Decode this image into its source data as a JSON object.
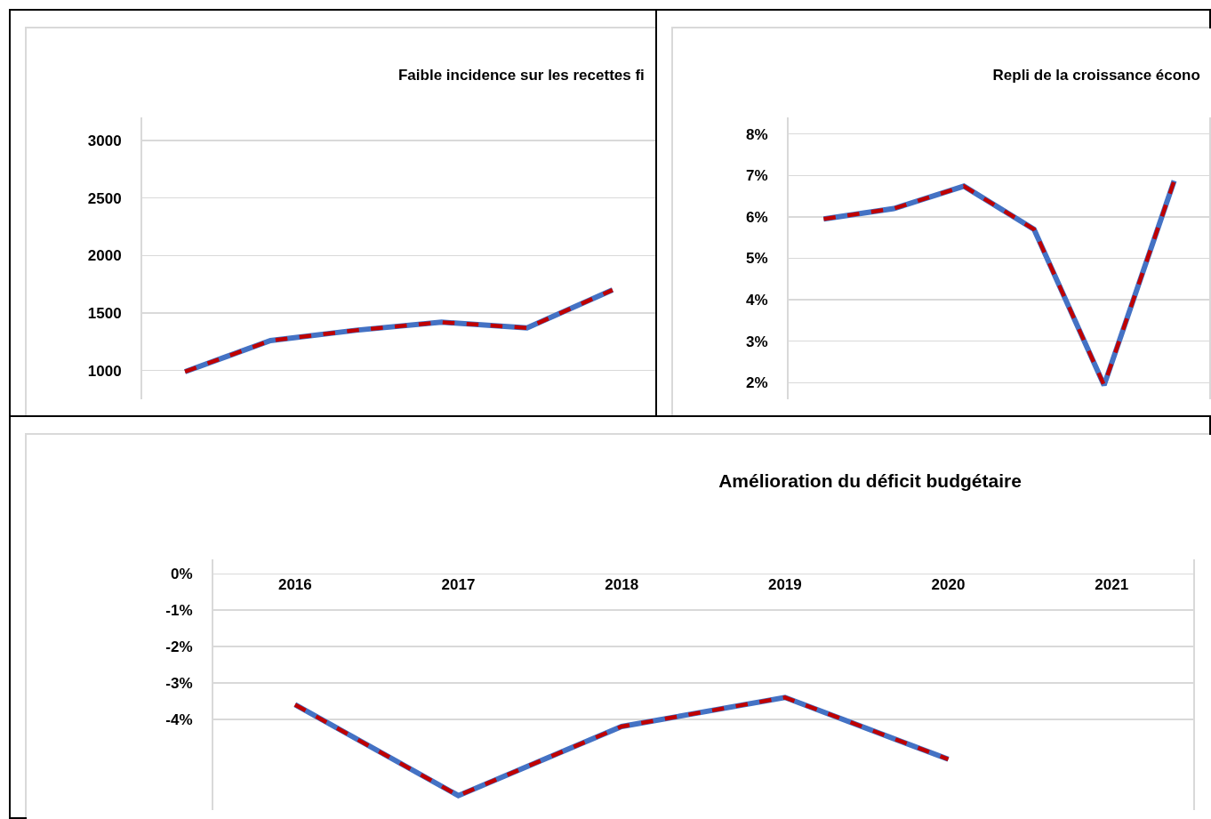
{
  "chart_data": [
    {
      "type": "line",
      "title": "Faible incidence sur les recettes fi",
      "categories": [
        null,
        null,
        null,
        null,
        null,
        null
      ],
      "series": [
        {
          "color": "#4472c4",
          "line_style": "solid",
          "values": [
            990,
            1260,
            1350,
            1420,
            1370,
            1700
          ]
        },
        {
          "color": "#c00000",
          "line_style": "dashed",
          "values": [
            990,
            1260,
            1350,
            1420,
            1370,
            1700
          ]
        }
      ],
      "ylim": [
        750,
        3200
      ],
      "yticks": [
        1000,
        1500,
        2000,
        2500,
        3000
      ],
      "grid": "y",
      "tick_labels": "y"
    },
    {
      "type": "line",
      "title": "Repli de la croissance écono",
      "categories": [
        null,
        null,
        null,
        null,
        null,
        null
      ],
      "series": [
        {
          "color": "#4472c4",
          "line_style": "solid",
          "values": [
            5.95,
            6.2,
            6.74,
            5.7,
            1.94,
            6.87
          ]
        },
        {
          "color": "#c00000",
          "line_style": "dashed",
          "values": [
            5.95,
            6.2,
            6.74,
            5.7,
            1.94,
            6.87
          ]
        }
      ],
      "ylim": [
        1.6,
        8.4
      ],
      "yticks": [
        {
          "value": 2,
          "label": "2%"
        },
        {
          "value": 3,
          "label": "3%"
        },
        {
          "value": 4,
          "label": "4%"
        },
        {
          "value": 5,
          "label": "5%"
        },
        {
          "value": 6,
          "label": "6%"
        },
        {
          "value": 7,
          "label": "7%"
        },
        {
          "value": 8,
          "label": "8%"
        }
      ],
      "grid": "y",
      "tick_labels": "y"
    },
    {
      "type": "line",
      "title": "Amélioration du déficit budgétaire",
      "categories": [
        "2016",
        "2017",
        "2018",
        "2019",
        "2020",
        "2021"
      ],
      "series": [
        {
          "color": "#4472c4",
          "line_style": "solid",
          "values": [
            -3.6,
            -6.1,
            -4.2,
            -3.4,
            -5.1,
            null
          ]
        },
        {
          "color": "#c00000",
          "line_style": "dashed",
          "values": [
            -3.6,
            -6.1,
            -4.2,
            -3.4,
            -5.1,
            null
          ]
        }
      ],
      "ylim": [
        -6.5,
        0.4
      ],
      "yticks": [
        {
          "value": -4,
          "label": "-4%"
        },
        {
          "value": -3,
          "label": "-3%"
        },
        {
          "value": -2,
          "label": "-2%"
        },
        {
          "value": -1,
          "label": "-1%"
        },
        {
          "value": 0,
          "label": "0%"
        }
      ],
      "grid": "y"
    }
  ]
}
